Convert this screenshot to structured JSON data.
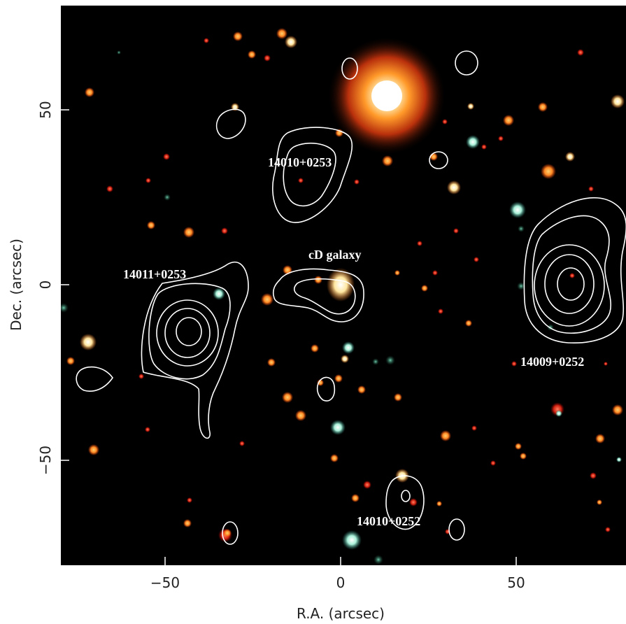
{
  "axes": {
    "xlabel": "R.A. (arcsec)",
    "ylabel": "Dec. (arcsec)",
    "xticks": [
      "−50",
      "0",
      "50"
    ],
    "yticks": [
      "50",
      "0",
      "−50"
    ]
  },
  "labels": {
    "src1": "14010+0253",
    "src2": "14011+0253",
    "src3": "cD galaxy",
    "src4": "14009+0252",
    "src5": "14010+0252"
  },
  "colors": {
    "sky": "#000000",
    "contour": "#ffffff",
    "frame_background": "#ffffff",
    "axis_text": "#222222"
  }
}
